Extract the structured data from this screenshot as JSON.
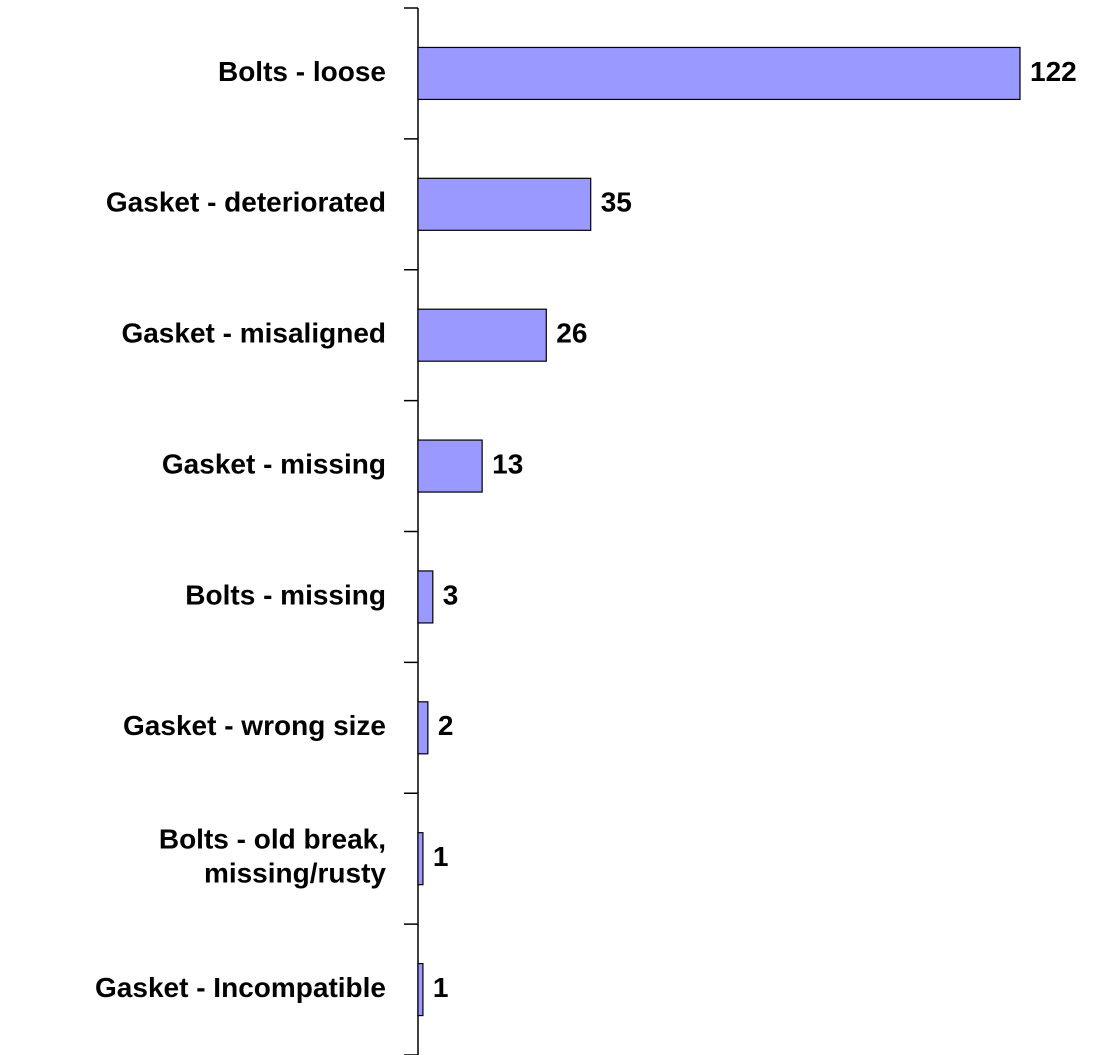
{
  "chart_data": {
    "type": "bar",
    "orientation": "horizontal",
    "categories": [
      "Bolts - loose",
      "Gasket - deteriorated",
      "Gasket - misaligned",
      "Gasket - missing",
      "Bolts - missing",
      "Gasket - wrong size",
      "Bolts - old break,\nmissing/rusty",
      "Gasket - Incompatible"
    ],
    "values": [
      122,
      35,
      26,
      13,
      3,
      2,
      1,
      1
    ],
    "color": "#9999ff"
  }
}
